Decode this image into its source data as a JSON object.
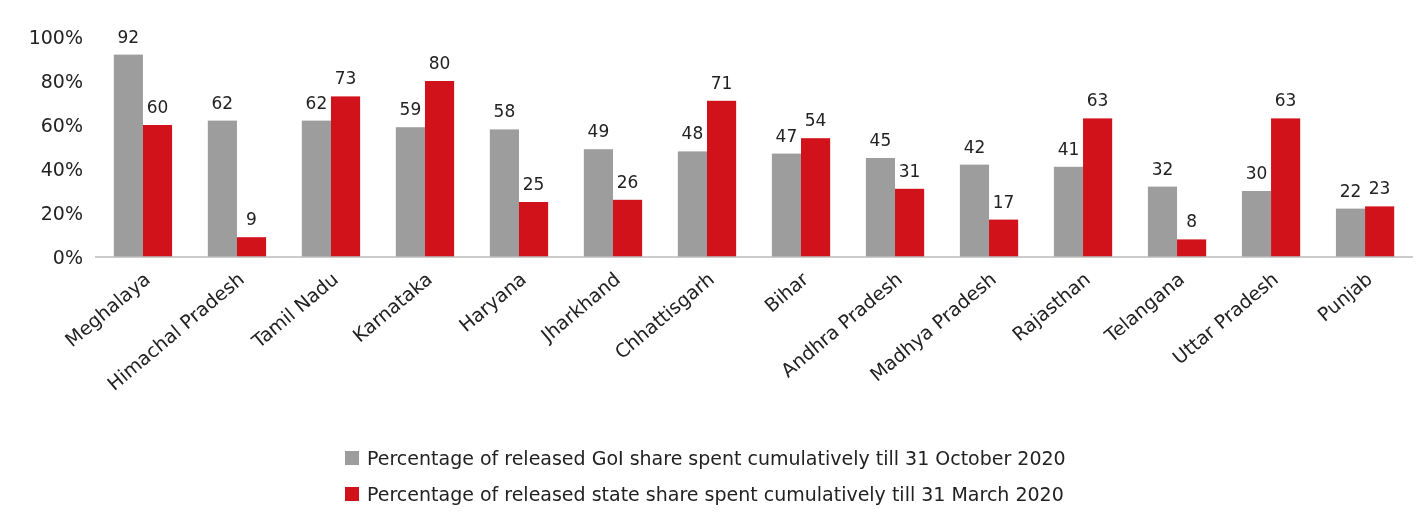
{
  "chart_data": {
    "type": "bar",
    "categories": [
      "Meghalaya",
      "Himachal Pradesh",
      "Tamil Nadu",
      "Karnataka",
      "Haryana",
      "Jharkhand",
      "Chhattisgarh",
      "Bihar",
      "Andhra Pradesh",
      "Madhya Pradesh",
      "Rajasthan",
      "Telangana",
      "Uttar Pradesh",
      "Punjab"
    ],
    "series": [
      {
        "name": "Percentage of released GoI share spent cumulatively till 31 October 2020",
        "color": "#9d9d9d",
        "values": [
          92,
          62,
          62,
          59,
          58,
          49,
          48,
          47,
          45,
          42,
          41,
          32,
          30,
          22
        ]
      },
      {
        "name": "Percentage of released state share spent cumulatively till 31 March 2020",
        "color": "#d2121b",
        "values": [
          60,
          9,
          73,
          80,
          25,
          26,
          71,
          54,
          31,
          17,
          63,
          8,
          63,
          23
        ]
      }
    ],
    "ylim": [
      0,
      100
    ],
    "yticks": [
      {
        "value": 0,
        "label": "0%"
      },
      {
        "value": 20,
        "label": "20%"
      },
      {
        "value": 40,
        "label": "40%"
      },
      {
        "value": 60,
        "label": "60%"
      },
      {
        "value": 80,
        "label": "80%"
      },
      {
        "value": 100,
        "label": "100%"
      }
    ],
    "data_labels": true,
    "legend": "bottom",
    "grid": false
  }
}
